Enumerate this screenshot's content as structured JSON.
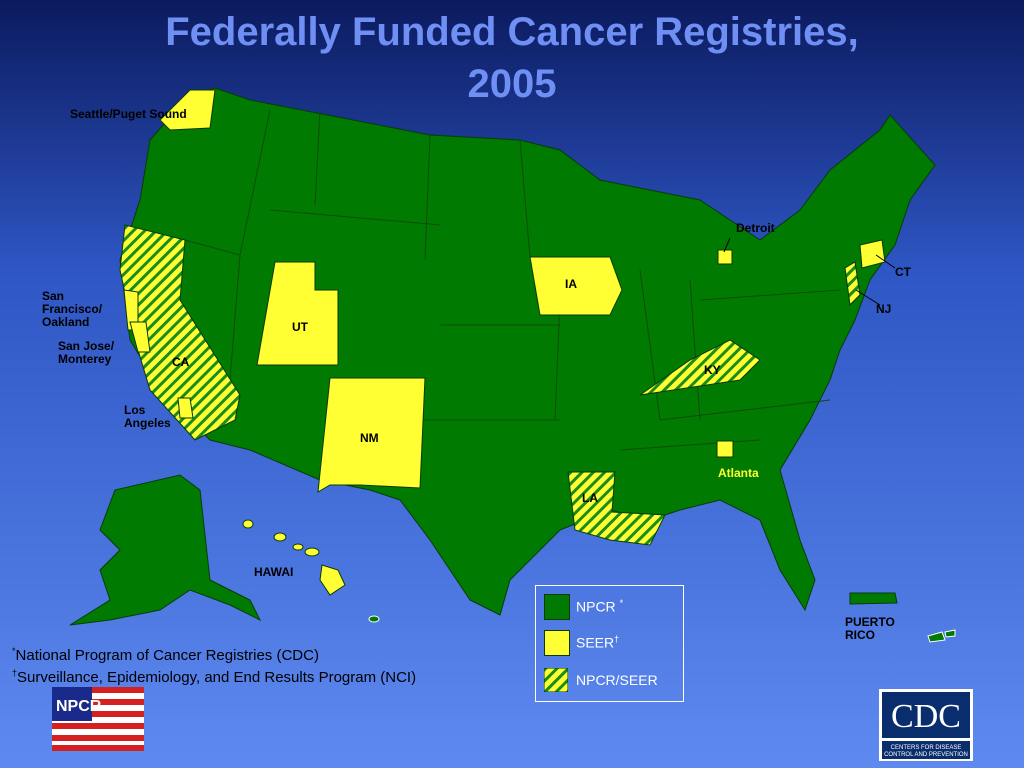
{
  "header": {
    "title_line1": "Federally Funded Cancer Registries,",
    "title_line2": "2005"
  },
  "map_labels": {
    "seattle": "Seattle/Puget Sound",
    "san_francisco": "San Francisco/ Oakland",
    "san_jose": "San Jose/ Monterey",
    "ca": "CA",
    "los_angeles": "Los Angeles",
    "ut": "UT",
    "nm": "NM",
    "ia": "IA",
    "detroit": "Detroit",
    "ct": "CT",
    "nj": "NJ",
    "ky": "KY",
    "la": "LA",
    "atlanta": "Atlanta",
    "hawaii": "HAWAI",
    "puerto_rico": "PUERTO RICO"
  },
  "legend": {
    "items": [
      {
        "label": "NPCR",
        "mark": "*"
      },
      {
        "label": "SEER",
        "mark": "†"
      },
      {
        "label": "NPCR/SEER"
      }
    ]
  },
  "footnotes": [
    {
      "mark": "*",
      "text": "National Program of Cancer Registries (CDC)"
    },
    {
      "mark": "†",
      "text": "Surveillance, Epidemiology, and End Results Program (NCI)"
    }
  ],
  "logos": {
    "npcr": "NPCR",
    "cdc": "CDC",
    "cdc_line1": "CENTERS FOR DISEASE",
    "cdc_line2": "CONTROL AND PREVENTION"
  }
}
